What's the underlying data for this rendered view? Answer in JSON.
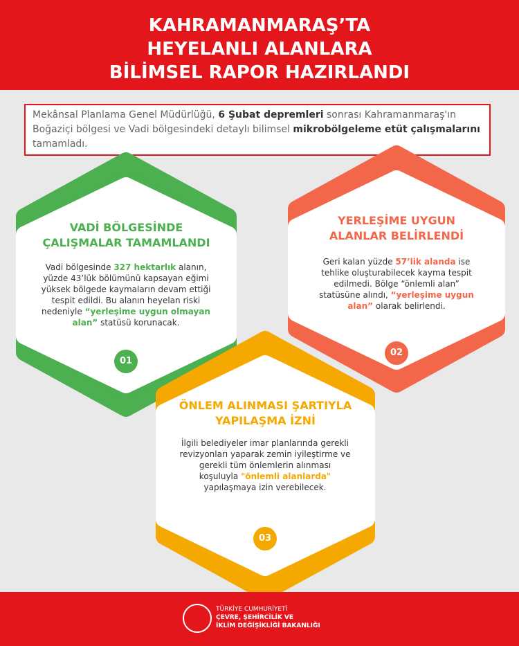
{
  "header": {
    "title": [
      "KAHRAMANMARAŞ’TA",
      "HEYELANLI ALANLARA",
      "BİLİMSEL RAPOR HAZIRLANDI"
    ]
  },
  "intro": [
    "Mekânsal Planlama Genel Müdürlüğü, ",
    "6 Şubat depremleri",
    " sonrası Kahramanmaraş'ın Boğaziçi bölgesi ve Vadi bölgesindeki detaylı bilimsel ",
    "mikrobölgeleme etüt çalışmalarını",
    " tamamladı."
  ],
  "cards": [
    {
      "title": [
        "VADİ BÖLGESİNDE",
        "ÇALIŞMALAR TAMAMLANDI"
      ],
      "body": [
        "Vadi bölgesinde ",
        "327 hektarlık",
        " alanın, yüzde 43’lük bölümünü kapsayan eğimi yüksek bölgede kaymaların devam ettiği tespit edildi. Bu alanın heyelan riski nedeniyle ",
        "“yerleşime uygun olmayan alan”",
        " statüsü korunacak."
      ],
      "number": "01",
      "color": "#4caf50"
    },
    {
      "title": [
        "YERLEŞİME UYGUN",
        "ALANLAR BELİRLENDİ"
      ],
      "body": [
        "Geri kalan yüzde ",
        "57’lik alanda",
        " ise tehlike oluşturabilecek kayma tespit edilmedi. Bölge “önlemli alan” statüsüne alındı, ",
        "“yerleşime uygun alan”",
        " olarak belirlendi."
      ],
      "number": "02",
      "color": "#f2674a"
    },
    {
      "title": [
        "ÖNLEM ALINMASI ŞARTIYLA",
        "YAPILAŞMA İZNİ"
      ],
      "body": [
        "İlgili belediyeler imar planlarında gerekli revizyonları yaparak zemin iyileştirme ve gerekli tüm önlemlerin alınması koşuluyla ",
        "\"önlemli alanlarda\"",
        " yapılaşmaya izin verebilecek."
      ],
      "number": "03",
      "color": "#f5a800"
    }
  ],
  "footer": {
    "lines": [
      "TÜRKİYE CUMHURİYETİ",
      "ÇEVRE, ŞEHİRCİLİK VE",
      "İKLİM DEĞİŞİKLİĞİ BAKANLIĞI"
    ]
  }
}
